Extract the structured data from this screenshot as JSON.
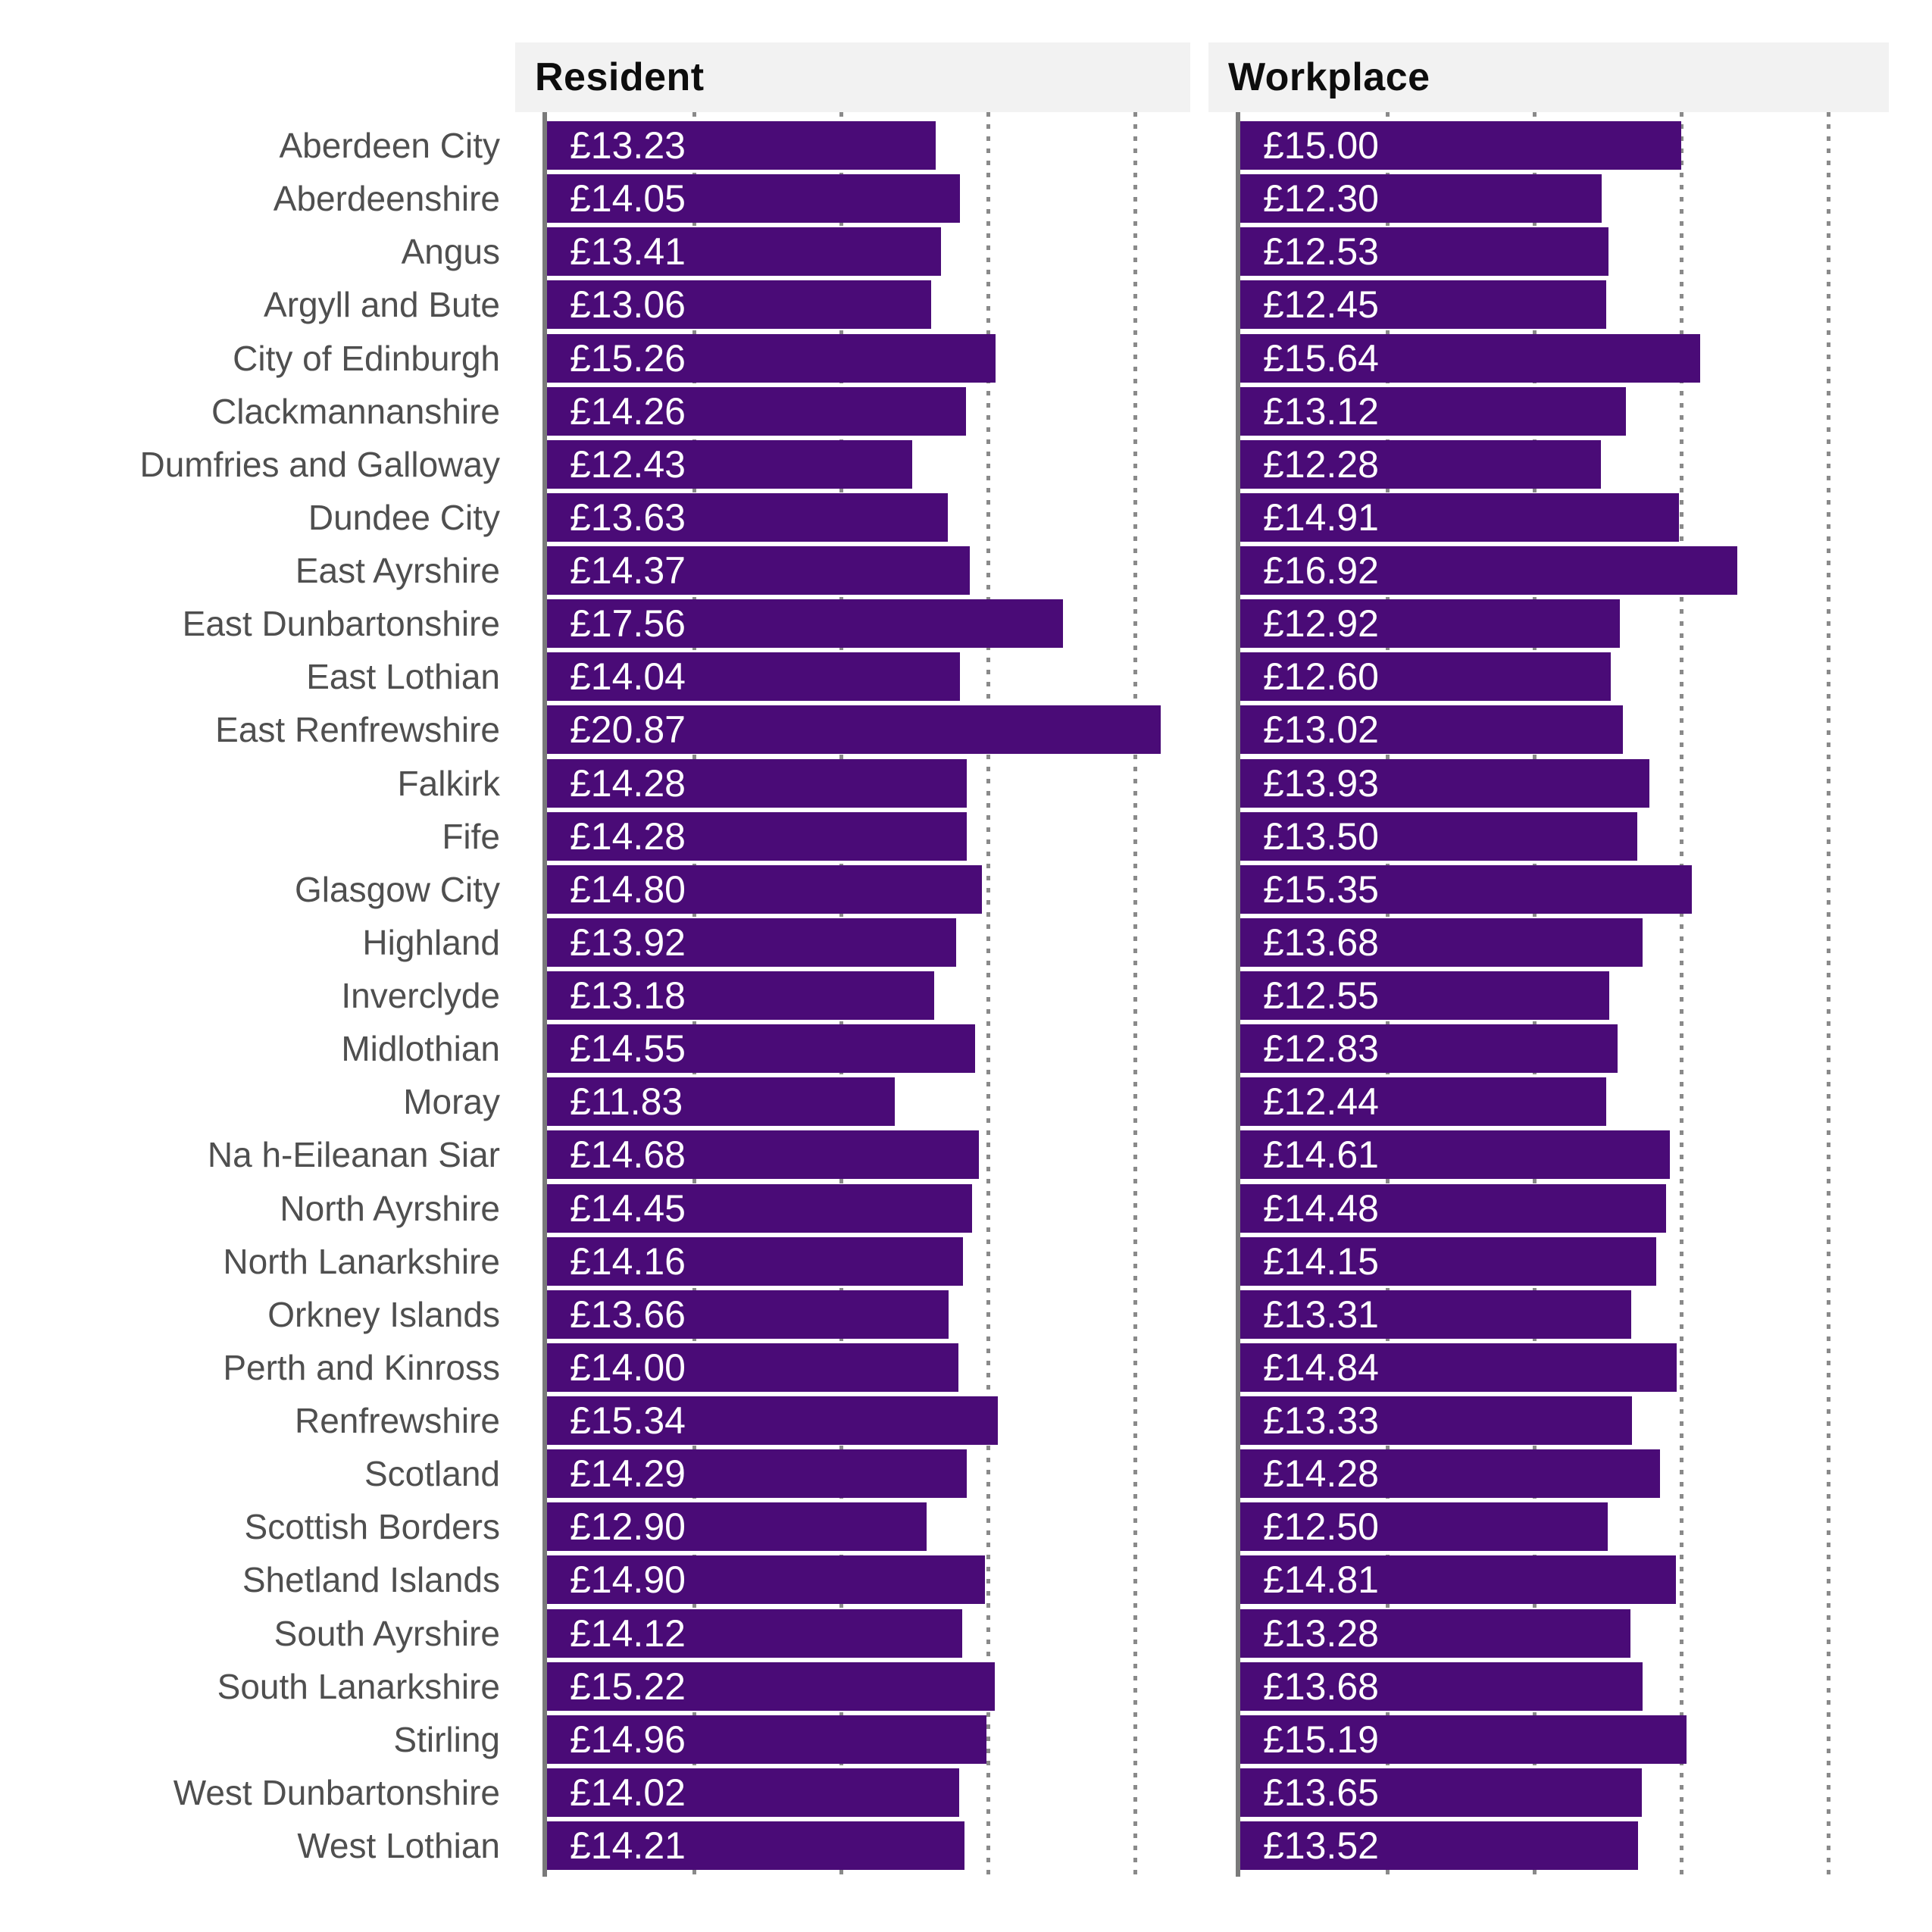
{
  "chart_data": {
    "type": "bar",
    "orientation": "horizontal",
    "title": "",
    "panel_headers": [
      "Resident",
      "Workplace"
    ],
    "categories": [
      "Aberdeen City",
      "Aberdeenshire",
      "Angus",
      "Argyll and Bute",
      "City of Edinburgh",
      "Clackmannanshire",
      "Dumfries and Galloway",
      "Dundee City",
      "East Ayrshire",
      "East Dunbartonshire",
      "East Lothian",
      "East Renfrewshire",
      "Falkirk",
      "Fife",
      "Glasgow City",
      "Highland",
      "Inverclyde",
      "Midlothian",
      "Moray",
      "Na h-Eileanan Siar",
      "North Ayrshire",
      "North Lanarkshire",
      "Orkney Islands",
      "Perth and Kinross",
      "Renfrewshire",
      "Scotland",
      "Scottish Borders",
      "Shetland Islands",
      "South Ayrshire",
      "South Lanarkshire",
      "Stirling",
      "West Dunbartonshire",
      "West Lothian"
    ],
    "series": [
      {
        "name": "Resident",
        "values": [
          13.23,
          14.05,
          13.41,
          13.06,
          15.26,
          14.26,
          12.43,
          13.63,
          14.37,
          17.56,
          14.04,
          20.87,
          14.28,
          14.28,
          14.8,
          13.92,
          13.18,
          14.55,
          11.83,
          14.68,
          14.45,
          14.16,
          13.66,
          14.0,
          15.34,
          14.29,
          12.9,
          14.9,
          14.12,
          15.22,
          14.96,
          14.02,
          14.21
        ]
      },
      {
        "name": "Workplace",
        "values": [
          15.0,
          12.3,
          12.53,
          12.45,
          15.64,
          13.12,
          12.28,
          14.91,
          16.92,
          12.92,
          12.6,
          13.02,
          13.93,
          13.5,
          15.35,
          13.68,
          12.55,
          12.83,
          12.44,
          14.61,
          14.48,
          14.15,
          13.31,
          14.84,
          13.33,
          14.28,
          12.5,
          14.81,
          13.28,
          13.68,
          15.19,
          13.65,
          13.52
        ]
      }
    ],
    "value_prefix": "£",
    "value_decimals": 2,
    "xlim": [
      0,
      22
    ],
    "x_gridlines": [
      5,
      10,
      15,
      20
    ],
    "x_tick_labels_visible": false,
    "grid_style": "dotted",
    "legend_position": "none",
    "bar_color": "#4A0B77",
    "grid_color": "#8A8A8A",
    "axis_color": "#7A7A7A",
    "label_color": "#4F4F4F",
    "header_bg": "#F2F2F2",
    "header_text_color": "#0D0D0D",
    "value_text_color": "#FFFFFF"
  }
}
